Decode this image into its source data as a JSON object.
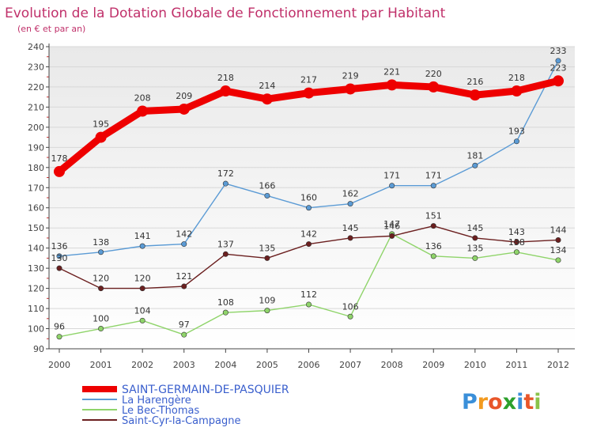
{
  "header": {
    "title": "Evolution de la Dotation Globale de Fonctionnement par Habitant",
    "subtitle": "(en € et par an)"
  },
  "brand": {
    "logo_text": "Proxiti"
  },
  "colors": {
    "title": "#c0306a",
    "legend_text": "#3a5fcd",
    "axis": "#444444",
    "grid": "#d8d8d8",
    "plot_bg_top": "#e9e9e9",
    "plot_bg_bottom": "#ffffff"
  },
  "chart_data": {
    "type": "line",
    "title": "Evolution de la Dotation Globale de Fonctionnement par Habitant",
    "subtitle": "(en € et par an)",
    "xlabel": "",
    "ylabel": "",
    "x": [
      "2000",
      "2001",
      "2002",
      "2003",
      "2004",
      "2005",
      "2006",
      "2007",
      "2008",
      "2009",
      "2010",
      "2011",
      "2012"
    ],
    "ylim": [
      90,
      240
    ],
    "yticks": [
      90,
      100,
      110,
      120,
      130,
      140,
      150,
      160,
      170,
      180,
      190,
      200,
      210,
      220,
      230,
      240
    ],
    "grid": "horizontal",
    "legend_position": "bottom-left",
    "series": [
      {
        "name": "SAINT-GERMAIN-DE-PASQUIER",
        "color": "#ee0000",
        "emphasis": true,
        "values": [
          178,
          195,
          208,
          209,
          218,
          214,
          217,
          219,
          221,
          220,
          216,
          218,
          223
        ]
      },
      {
        "name": "La Harengère",
        "color": "#5b9bd5",
        "emphasis": false,
        "values": [
          136,
          138,
          141,
          142,
          172,
          166,
          160,
          162,
          171,
          171,
          181,
          193,
          233
        ]
      },
      {
        "name": "Le Bec-Thomas",
        "color": "#8fd46a",
        "emphasis": false,
        "values": [
          96,
          100,
          104,
          97,
          108,
          109,
          112,
          106,
          147,
          136,
          135,
          138,
          134
        ]
      },
      {
        "name": "Saint-Cyr-la-Campagne",
        "color": "#6b1f1f",
        "emphasis": false,
        "values": [
          130,
          120,
          120,
          121,
          137,
          135,
          142,
          145,
          146,
          151,
          145,
          143,
          144
        ]
      }
    ]
  }
}
